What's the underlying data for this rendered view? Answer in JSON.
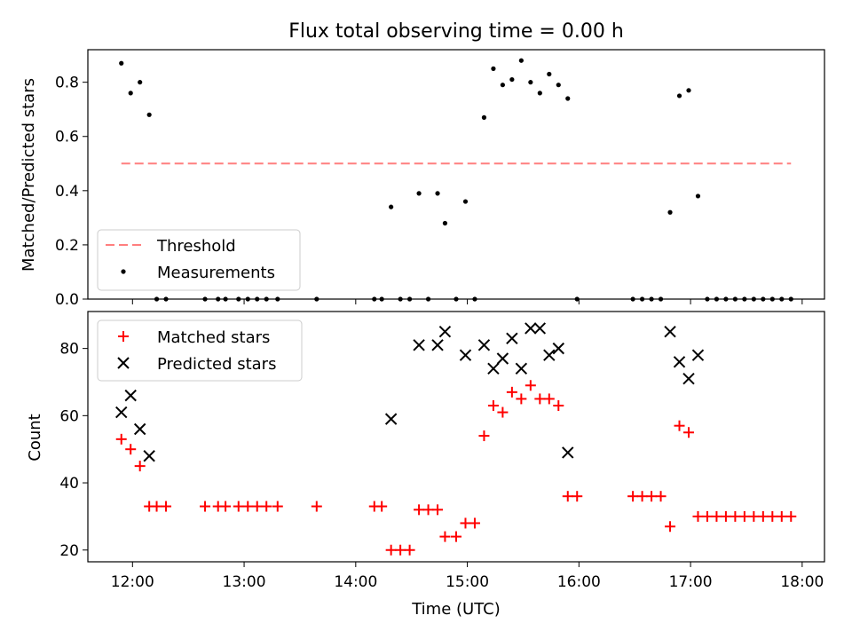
{
  "chart_data": [
    {
      "type": "scatter",
      "title": "Flux total observing time = 0.00 h",
      "xlabel": "",
      "ylabel": "Matched/Predicted stars",
      "xlim": [
        "11:36",
        "18:12"
      ],
      "ylim": [
        0,
        0.92
      ],
      "yticks": [
        0.0,
        0.2,
        0.4,
        0.6,
        0.8
      ],
      "ytick_labels": [
        "0.0",
        "0.2",
        "0.4",
        "0.6",
        "0.8"
      ],
      "xticks": [
        "12:00",
        "13:00",
        "14:00",
        "15:00",
        "16:00",
        "17:00",
        "18:00"
      ],
      "legend": {
        "placement": "lower-left",
        "entries": [
          "Threshold",
          "Measurements"
        ]
      },
      "threshold": {
        "name": "Threshold",
        "y": 0.5,
        "x_start": "11:54",
        "x_end": "17:54",
        "color": "#ff7f7f"
      },
      "series": [
        {
          "name": "Measurements",
          "color": "#000000",
          "points": [
            [
              "11:54",
              0.87
            ],
            [
              "11:59",
              0.76
            ],
            [
              "12:04",
              0.8
            ],
            [
              "12:09",
              0.68
            ],
            [
              "12:13",
              0.0
            ],
            [
              "12:18",
              0.0
            ],
            [
              "12:39",
              0.0
            ],
            [
              "12:46",
              0.0
            ],
            [
              "12:50",
              0.0
            ],
            [
              "12:57",
              0.0
            ],
            [
              "13:02",
              0.0
            ],
            [
              "13:07",
              0.0
            ],
            [
              "13:12",
              0.0
            ],
            [
              "13:18",
              0.0
            ],
            [
              "13:39",
              0.0
            ],
            [
              "14:10",
              0.0
            ],
            [
              "14:14",
              0.0
            ],
            [
              "14:19",
              0.34
            ],
            [
              "14:24",
              0.0
            ],
            [
              "14:29",
              0.0
            ],
            [
              "14:34",
              0.39
            ],
            [
              "14:39",
              0.0
            ],
            [
              "14:44",
              0.39
            ],
            [
              "14:48",
              0.28
            ],
            [
              "14:54",
              0.0
            ],
            [
              "14:59",
              0.36
            ],
            [
              "15:04",
              0.0
            ],
            [
              "15:09",
              0.67
            ],
            [
              "15:14",
              0.85
            ],
            [
              "15:19",
              0.79
            ],
            [
              "15:24",
              0.81
            ],
            [
              "15:29",
              0.88
            ],
            [
              "15:34",
              0.8
            ],
            [
              "15:39",
              0.76
            ],
            [
              "15:44",
              0.83
            ],
            [
              "15:49",
              0.79
            ],
            [
              "15:54",
              0.74
            ],
            [
              "15:59",
              0.0
            ],
            [
              "16:29",
              0.0
            ],
            [
              "16:34",
              0.0
            ],
            [
              "16:39",
              0.0
            ],
            [
              "16:44",
              0.0
            ],
            [
              "16:49",
              0.32
            ],
            [
              "16:54",
              0.75
            ],
            [
              "16:59",
              0.77
            ],
            [
              "17:04",
              0.38
            ],
            [
              "17:09",
              0.0
            ],
            [
              "17:14",
              0.0
            ],
            [
              "17:19",
              0.0
            ],
            [
              "17:24",
              0.0
            ],
            [
              "17:29",
              0.0
            ],
            [
              "17:34",
              0.0
            ],
            [
              "17:39",
              0.0
            ],
            [
              "17:44",
              0.0
            ],
            [
              "17:49",
              0.0
            ],
            [
              "17:54",
              0.0
            ]
          ]
        }
      ]
    },
    {
      "type": "scatter",
      "title": "",
      "xlabel": "Time (UTC)",
      "ylabel": "Count",
      "xlim": [
        "11:36",
        "18:12"
      ],
      "ylim": [
        16.5,
        91
      ],
      "yticks": [
        20,
        40,
        60,
        80
      ],
      "ytick_labels": [
        "20",
        "40",
        "60",
        "80"
      ],
      "xticks": [
        "12:00",
        "13:00",
        "14:00",
        "15:00",
        "16:00",
        "17:00",
        "18:00"
      ],
      "xtick_labels": [
        "12:00",
        "13:00",
        "14:00",
        "15:00",
        "16:00",
        "17:00",
        "18:00"
      ],
      "legend": {
        "placement": "upper-left",
        "entries": [
          "Matched stars",
          "Predicted stars"
        ]
      },
      "series": [
        {
          "name": "Matched stars",
          "color": "#ff0000",
          "marker": "plus",
          "points": [
            [
              "11:54",
              53
            ],
            [
              "11:59",
              50
            ],
            [
              "12:04",
              45
            ],
            [
              "12:09",
              33
            ],
            [
              "12:13",
              33
            ],
            [
              "12:18",
              33
            ],
            [
              "12:39",
              33
            ],
            [
              "12:46",
              33
            ],
            [
              "12:50",
              33
            ],
            [
              "12:57",
              33
            ],
            [
              "13:02",
              33
            ],
            [
              "13:07",
              33
            ],
            [
              "13:12",
              33
            ],
            [
              "13:18",
              33
            ],
            [
              "13:39",
              33
            ],
            [
              "14:10",
              33
            ],
            [
              "14:14",
              33
            ],
            [
              "14:19",
              20
            ],
            [
              "14:24",
              20
            ],
            [
              "14:29",
              20
            ],
            [
              "14:34",
              32
            ],
            [
              "14:39",
              32
            ],
            [
              "14:44",
              32
            ],
            [
              "14:48",
              24
            ],
            [
              "14:54",
              24
            ],
            [
              "14:59",
              28
            ],
            [
              "15:04",
              28
            ],
            [
              "15:09",
              54
            ],
            [
              "15:14",
              63
            ],
            [
              "15:19",
              61
            ],
            [
              "15:24",
              67
            ],
            [
              "15:29",
              65
            ],
            [
              "15:34",
              69
            ],
            [
              "15:39",
              65
            ],
            [
              "15:44",
              65
            ],
            [
              "15:49",
              63
            ],
            [
              "15:54",
              36
            ],
            [
              "15:59",
              36
            ],
            [
              "16:29",
              36
            ],
            [
              "16:34",
              36
            ],
            [
              "16:39",
              36
            ],
            [
              "16:44",
              36
            ],
            [
              "16:49",
              27
            ],
            [
              "16:54",
              57
            ],
            [
              "16:59",
              55
            ],
            [
              "17:04",
              30
            ],
            [
              "17:09",
              30
            ],
            [
              "17:14",
              30
            ],
            [
              "17:19",
              30
            ],
            [
              "17:24",
              30
            ],
            [
              "17:29",
              30
            ],
            [
              "17:34",
              30
            ],
            [
              "17:39",
              30
            ],
            [
              "17:44",
              30
            ],
            [
              "17:49",
              30
            ],
            [
              "17:54",
              30
            ]
          ]
        },
        {
          "name": "Predicted stars",
          "color": "#000000",
          "marker": "x",
          "points": [
            [
              "11:54",
              61
            ],
            [
              "11:59",
              66
            ],
            [
              "12:04",
              56
            ],
            [
              "12:09",
              48
            ],
            [
              "14:19",
              59
            ],
            [
              "14:34",
              81
            ],
            [
              "14:44",
              81
            ],
            [
              "14:48",
              85
            ],
            [
              "14:59",
              78
            ],
            [
              "15:09",
              81
            ],
            [
              "15:14",
              74
            ],
            [
              "15:19",
              77
            ],
            [
              "15:24",
              83
            ],
            [
              "15:29",
              74
            ],
            [
              "15:34",
              86
            ],
            [
              "15:39",
              86
            ],
            [
              "15:44",
              78
            ],
            [
              "15:49",
              80
            ],
            [
              "15:54",
              49
            ],
            [
              "16:49",
              85
            ],
            [
              "16:54",
              76
            ],
            [
              "16:59",
              71
            ],
            [
              "17:04",
              78
            ]
          ]
        }
      ]
    }
  ]
}
